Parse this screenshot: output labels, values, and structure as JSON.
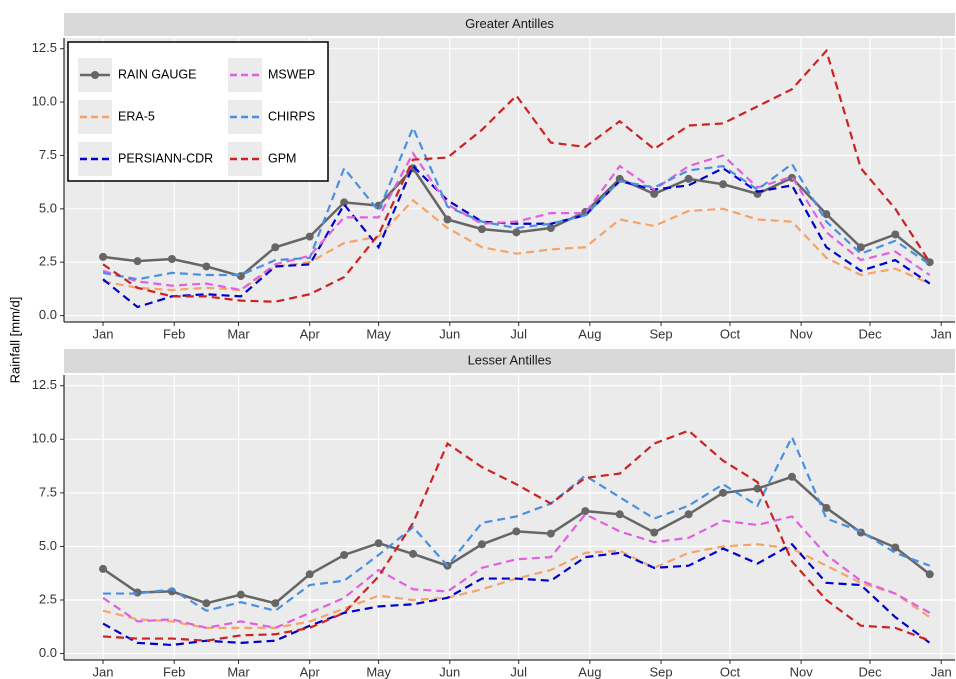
{
  "chart_data": [
    {
      "type": "line",
      "title": "Greater Antilles",
      "ylabel": "Rainfall [mm/d]",
      "legend": "top-left",
      "grid": true,
      "x": [
        1,
        16,
        31,
        46,
        61,
        76,
        91,
        106,
        121,
        136,
        151,
        166,
        181,
        196,
        211,
        226,
        241,
        256,
        271,
        286,
        301,
        316,
        331,
        346,
        361
      ],
      "xlim": [
        -16,
        372
      ],
      "ylim": [
        -0.3,
        13
      ],
      "xticks": [
        {
          "value": 1,
          "label": "Jan"
        },
        {
          "value": 32,
          "label": "Feb"
        },
        {
          "value": 60,
          "label": "Mar"
        },
        {
          "value": 91,
          "label": "Apr"
        },
        {
          "value": 121,
          "label": "May"
        },
        {
          "value": 152,
          "label": "Jun"
        },
        {
          "value": 182,
          "label": "Jul"
        },
        {
          "value": 213,
          "label": "Aug"
        },
        {
          "value": 244,
          "label": "Sep"
        },
        {
          "value": 274,
          "label": "Oct"
        },
        {
          "value": 305,
          "label": "Nov"
        },
        {
          "value": 335,
          "label": "Dec"
        },
        {
          "value": 366,
          "label": "Jan"
        }
      ],
      "yticks": [
        {
          "value": 0,
          "label": "0.0"
        },
        2.5,
        {
          "value": 5,
          "label": "5.0"
        },
        7.5,
        {
          "value": 10,
          "label": "10.0"
        },
        12.5
      ],
      "series": [
        {
          "name": "RAIN GAUGE",
          "color": "#666666",
          "linestyle": "solid",
          "markers": true,
          "values": [
            2.75,
            2.55,
            2.65,
            2.3,
            1.85,
            3.2,
            3.7,
            5.3,
            5.15,
            6.9,
            4.5,
            4.05,
            3.9,
            4.1,
            4.85,
            6.4,
            5.7,
            6.4,
            6.15,
            5.7,
            6.45,
            4.75,
            3.2,
            3.8,
            2.5
          ]
        },
        {
          "name": "ERA-5",
          "color": "#f4a46a",
          "linestyle": "dashed",
          "markers": false,
          "values": [
            1.6,
            1.3,
            1.2,
            1.3,
            1.2,
            2.3,
            2.5,
            3.4,
            3.7,
            5.4,
            4.1,
            3.2,
            2.9,
            3.1,
            3.2,
            4.5,
            4.2,
            4.9,
            5.0,
            4.5,
            4.4,
            2.7,
            1.9,
            2.2,
            1.5
          ]
        },
        {
          "name": "PERSIANN-CDR",
          "color": "#0000cd",
          "linestyle": "dashed",
          "markers": false,
          "values": [
            1.7,
            0.4,
            0.9,
            1.0,
            0.9,
            2.3,
            2.4,
            5.2,
            3.2,
            7.0,
            5.4,
            4.4,
            4.3,
            4.3,
            4.7,
            6.3,
            5.9,
            6.1,
            6.9,
            5.8,
            6.1,
            3.2,
            2.1,
            2.6,
            1.5
          ]
        },
        {
          "name": "MSWEP",
          "color": "#e060e0",
          "linestyle": "dashed",
          "markers": false,
          "values": [
            2.1,
            1.6,
            1.4,
            1.5,
            1.2,
            2.4,
            2.8,
            4.6,
            4.6,
            7.6,
            5.2,
            4.3,
            4.4,
            4.8,
            4.8,
            7.0,
            5.9,
            7.0,
            7.5,
            6.0,
            6.5,
            3.9,
            2.6,
            3.0,
            1.9
          ]
        },
        {
          "name": "CHIRPS",
          "color": "#4a90e2",
          "linestyle": "dashed",
          "markers": false,
          "values": [
            2.0,
            1.7,
            2.0,
            1.9,
            1.9,
            2.6,
            2.7,
            6.9,
            4.9,
            8.8,
            5.1,
            4.4,
            4.1,
            4.3,
            4.7,
            6.3,
            6.0,
            6.8,
            7.0,
            5.9,
            7.1,
            4.4,
            2.9,
            3.5,
            2.4
          ]
        },
        {
          "name": "GPM",
          "color": "#cc2222",
          "linestyle": "dashed",
          "markers": false,
          "values": [
            2.4,
            1.3,
            0.9,
            0.9,
            0.7,
            0.65,
            1.0,
            1.8,
            3.8,
            7.3,
            7.4,
            8.7,
            10.3,
            8.1,
            7.9,
            9.1,
            7.8,
            8.9,
            9.0,
            9.8,
            10.6,
            12.4,
            6.9,
            5.0,
            2.5
          ]
        }
      ]
    },
    {
      "type": "line",
      "title": "Lesser Antilles",
      "grid": true,
      "x": [
        1,
        16,
        31,
        46,
        61,
        76,
        91,
        106,
        121,
        136,
        151,
        166,
        181,
        196,
        211,
        226,
        241,
        256,
        271,
        286,
        301,
        316,
        331,
        346,
        361
      ],
      "xlim": [
        -16,
        372
      ],
      "ylim": [
        -0.3,
        13
      ],
      "xticks": [
        {
          "value": 1,
          "label": "Jan"
        },
        {
          "value": 32,
          "label": "Feb"
        },
        {
          "value": 60,
          "label": "Mar"
        },
        {
          "value": 91,
          "label": "Apr"
        },
        {
          "value": 121,
          "label": "May"
        },
        {
          "value": 152,
          "label": "Jun"
        },
        {
          "value": 182,
          "label": "Jul"
        },
        {
          "value": 213,
          "label": "Aug"
        },
        {
          "value": 244,
          "label": "Sep"
        },
        {
          "value": 274,
          "label": "Oct"
        },
        {
          "value": 305,
          "label": "Nov"
        },
        {
          "value": 335,
          "label": "Dec"
        },
        {
          "value": 366,
          "label": "Jan"
        }
      ],
      "yticks": [
        {
          "value": 0,
          "label": "0.0"
        },
        2.5,
        {
          "value": 5,
          "label": "5.0"
        },
        7.5,
        {
          "value": 10,
          "label": "10.0"
        },
        12.5
      ],
      "series": [
        {
          "name": "RAIN GAUGE",
          "color": "#666666",
          "linestyle": "solid",
          "markers": true,
          "values": [
            3.95,
            2.85,
            2.9,
            2.35,
            2.75,
            2.35,
            3.7,
            4.6,
            5.15,
            4.65,
            4.1,
            5.1,
            5.7,
            5.6,
            6.65,
            6.5,
            5.65,
            6.5,
            7.5,
            7.7,
            8.25,
            6.8,
            5.65,
            4.95,
            3.7
          ]
        },
        {
          "name": "ERA-5",
          "color": "#f4a46a",
          "linestyle": "dashed",
          "markers": false,
          "values": [
            2.0,
            1.6,
            1.5,
            1.2,
            1.2,
            1.2,
            1.5,
            2.1,
            2.7,
            2.5,
            2.6,
            3.0,
            3.5,
            3.9,
            4.7,
            4.8,
            4.0,
            4.7,
            5.0,
            5.1,
            4.9,
            4.1,
            3.3,
            2.8,
            1.7
          ]
        },
        {
          "name": "PERSIANN-CDR",
          "color": "#0000cd",
          "linestyle": "dashed",
          "markers": false,
          "values": [
            1.4,
            0.5,
            0.4,
            0.6,
            0.5,
            0.6,
            1.3,
            1.9,
            2.2,
            2.3,
            2.6,
            3.5,
            3.5,
            3.4,
            4.5,
            4.7,
            4.0,
            4.1,
            4.9,
            4.2,
            5.1,
            3.3,
            3.2,
            1.7,
            0.5
          ]
        },
        {
          "name": "MSWEP",
          "color": "#e060e0",
          "linestyle": "dashed",
          "markers": false,
          "values": [
            2.6,
            1.5,
            1.6,
            1.2,
            1.5,
            1.2,
            1.9,
            2.6,
            3.9,
            3.0,
            2.9,
            4.0,
            4.4,
            4.5,
            6.5,
            5.7,
            5.2,
            5.4,
            6.2,
            6.0,
            6.4,
            4.6,
            3.4,
            2.8,
            1.9
          ]
        },
        {
          "name": "CHIRPS",
          "color": "#4a90e2",
          "linestyle": "dashed",
          "markers": false,
          "values": [
            2.8,
            2.8,
            3.0,
            2.0,
            2.4,
            2.0,
            3.2,
            3.4,
            4.6,
            5.9,
            4.1,
            6.1,
            6.4,
            7.0,
            8.3,
            7.3,
            6.3,
            6.9,
            7.9,
            6.9,
            10.1,
            6.3,
            5.7,
            4.7,
            4.1
          ]
        },
        {
          "name": "GPM",
          "color": "#cc2222",
          "linestyle": "dashed",
          "markers": false,
          "values": [
            0.8,
            0.7,
            0.7,
            0.6,
            0.85,
            0.9,
            1.2,
            1.9,
            3.6,
            6.1,
            9.8,
            8.7,
            7.9,
            7.0,
            8.2,
            8.4,
            9.8,
            10.4,
            9.0,
            8.0,
            4.3,
            2.5,
            1.3,
            1.2,
            0.6
          ]
        }
      ]
    }
  ]
}
